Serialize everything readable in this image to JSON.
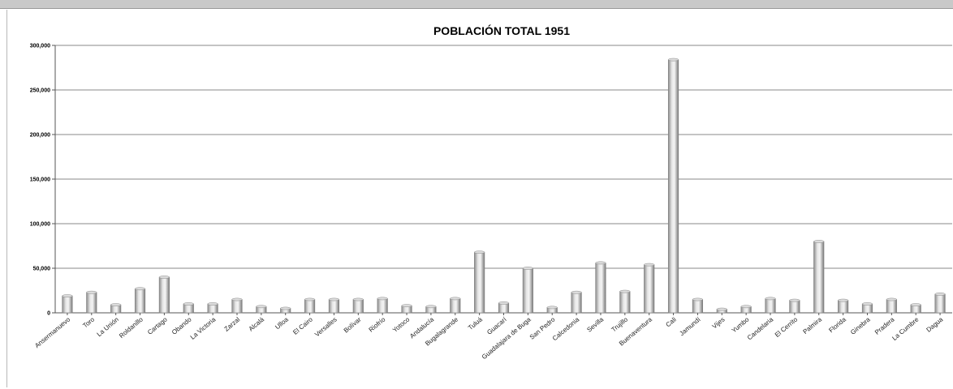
{
  "chart_data": {
    "type": "bar",
    "title": "POBLACIÓN TOTAL 1951",
    "xlabel": "",
    "ylabel": "",
    "ylim": [
      0,
      300000
    ],
    "yticks": [
      0,
      50000,
      100000,
      150000,
      200000,
      250000,
      300000
    ],
    "ytick_labels": [
      "0",
      "50,000",
      "100,000",
      "150,000",
      "200,000",
      "250,000",
      "300,000"
    ],
    "grid": true,
    "categories": [
      "Ansermanuevo",
      "Toro",
      "La Unión",
      "Roldanillo",
      "Cartago",
      "Obando",
      "La Victoria",
      "Zarzal",
      "Alcalá",
      "Ulloa",
      "El Cairo",
      "Versalles",
      "Bolívar",
      "Riofrío",
      "Yotoco",
      "Andalucía",
      "Bugalagrande",
      "Tuluá",
      "Guacarí",
      "Guadalajara de Buga",
      "San Pedro",
      "Calcedonia",
      "Sevilla",
      "Trujillo",
      "Buenaventura",
      "Cali",
      "Jamundí",
      "Vijes",
      "Yumbo",
      "Candelaria",
      "El Cerrito",
      "Palmira",
      "Florida",
      "Ginebra",
      "Pradera",
      "La Cumbre",
      "Dagua"
    ],
    "values": [
      19000,
      23000,
      9000,
      27000,
      40000,
      10000,
      10000,
      15000,
      7000,
      5000,
      15000,
      15000,
      15000,
      16000,
      8000,
      7000,
      16000,
      68000,
      11000,
      50000,
      6000,
      23000,
      56000,
      24000,
      54000,
      284000,
      15000,
      4000,
      7000,
      16000,
      14000,
      80000,
      14000,
      10000,
      15000,
      9000,
      21000
    ],
    "bar_color": "#c8c8c8"
  }
}
